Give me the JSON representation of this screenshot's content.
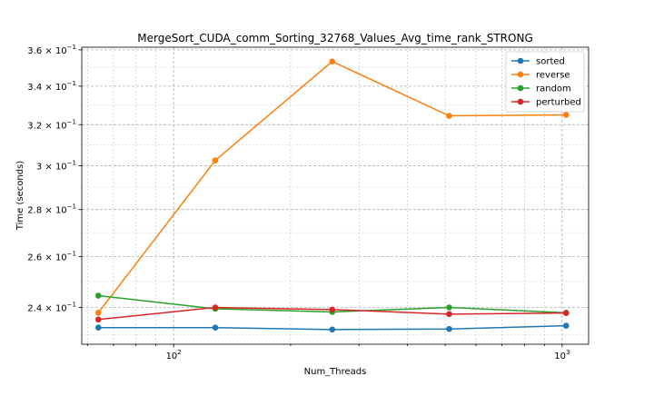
{
  "chart_data": {
    "type": "line",
    "title": "MergeSort_CUDA_comm_Sorting_32768_Values_Avg_time_rank_STRONG",
    "xlabel": "Num_Threads",
    "ylabel": "Time (seconds)",
    "xscale": "log",
    "yscale": "log",
    "grid": true,
    "legend_position": "top-right",
    "xlim": [
      58,
      1170
    ],
    "ylim": [
      0.2265,
      0.3615
    ],
    "x_ticks": [
      {
        "value": 100,
        "base": "10",
        "exp": "2"
      },
      {
        "value": 1000,
        "base": "10",
        "exp": "3"
      }
    ],
    "y_ticks": [
      {
        "value": 0.24,
        "mant": "2.4",
        "exp": "−1"
      },
      {
        "value": 0.26,
        "mant": "2.6",
        "exp": "−1"
      },
      {
        "value": 0.28,
        "mant": "2.8",
        "exp": "−1"
      },
      {
        "value": 0.3,
        "mant": "3",
        "exp": "−1"
      },
      {
        "value": 0.32,
        "mant": "3.2",
        "exp": "−1"
      },
      {
        "value": 0.34,
        "mant": "3.4",
        "exp": "−1"
      },
      {
        "value": 0.36,
        "mant": "3.6",
        "exp": "−1"
      }
    ],
    "x": [
      64,
      128,
      256,
      512,
      1024
    ],
    "series": [
      {
        "name": "sorted",
        "color": "#1f77b4",
        "values": [
          0.2325,
          0.2325,
          0.2318,
          0.232,
          0.2332
        ]
      },
      {
        "name": "reverse",
        "color": "#ff7f0e",
        "values": [
          0.238,
          0.3025,
          0.3535,
          0.3245,
          0.325
        ]
      },
      {
        "name": "random",
        "color": "#2ca02c",
        "values": [
          0.2445,
          0.2395,
          0.2383,
          0.24,
          0.238
        ]
      },
      {
        "name": "perturbed",
        "color": "#d62728",
        "values": [
          0.2355,
          0.24,
          0.2392,
          0.2375,
          0.2379
        ]
      }
    ]
  }
}
